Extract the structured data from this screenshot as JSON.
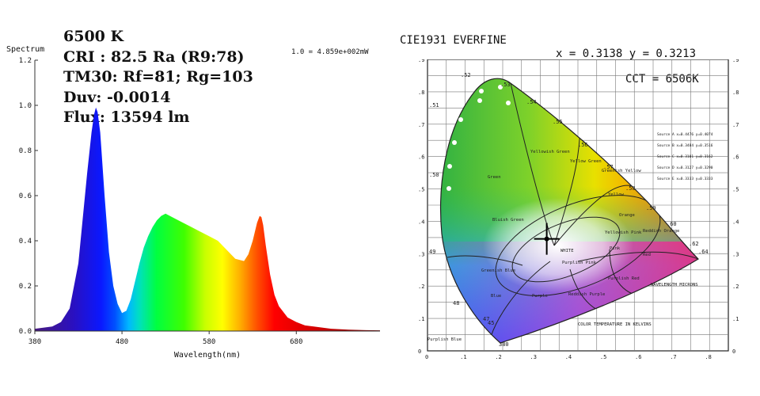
{
  "stats": {
    "cct": "6500 K",
    "cri": "CRI : 82.5 Ra (R9:78)",
    "tm30": "TM30: Rf=81; Rg=103",
    "duv": "Duv: -0.0014",
    "flux": "Flux: 13594 lm"
  },
  "chart_data": [
    {
      "type": "area",
      "title": "",
      "ylabel": "Spectrum",
      "xlabel": "Wavelength(nm)",
      "scale_note": "1.0 = 4.859e+002mW",
      "xlim": [
        380,
        780
      ],
      "ylim": [
        0,
        1.2
      ],
      "xticks": [
        "380",
        "480",
        "580",
        "680"
      ],
      "yticks": [
        "0.0",
        "0.2",
        "0.4",
        "0.6",
        "0.8",
        "1.0",
        "1.2"
      ],
      "series": [
        {
          "x": [
            380,
            400,
            410,
            420,
            430,
            440,
            445,
            448,
            450,
            452,
            455,
            460,
            465,
            470,
            475,
            480,
            485,
            490,
            495,
            500,
            505,
            510,
            515,
            520,
            525,
            530,
            535,
            540,
            550,
            560,
            570,
            580,
            590,
            600,
            610,
            620,
            625,
            630,
            635,
            638,
            640,
            642,
            645,
            650,
            655,
            660,
            670,
            680,
            690,
            700,
            720,
            740,
            760,
            780
          ],
          "y": [
            0.01,
            0.02,
            0.04,
            0.1,
            0.3,
            0.7,
            0.88,
            0.96,
            0.99,
            0.97,
            0.88,
            0.6,
            0.35,
            0.2,
            0.12,
            0.08,
            0.09,
            0.14,
            0.22,
            0.3,
            0.37,
            0.42,
            0.46,
            0.49,
            0.51,
            0.52,
            0.51,
            0.5,
            0.48,
            0.46,
            0.44,
            0.42,
            0.4,
            0.36,
            0.32,
            0.31,
            0.34,
            0.4,
            0.48,
            0.51,
            0.505,
            0.47,
            0.38,
            0.25,
            0.16,
            0.11,
            0.06,
            0.04,
            0.025,
            0.02,
            0.01,
            0.006,
            0.004,
            0.003
          ]
        }
      ]
    },
    {
      "type": "scatter",
      "title": "CIE1931   EVERFINE",
      "readout": "x = 0.3138 y = 0.3213",
      "cct_label": "CCT = 6506K",
      "xlim": [
        0,
        0.8
      ],
      "ylim": [
        0,
        0.9
      ],
      "axis_labels": [
        "0",
        ".1",
        ".2",
        ".3",
        ".4",
        ".5",
        ".6",
        ".7",
        ".8",
        ".9"
      ],
      "locus_labels": [
        "380",
        "45",
        "47",
        "48",
        "49",
        ".50",
        ".51",
        ".52",
        ".53",
        ".54",
        ".55",
        ".56",
        ".57",
        ".58",
        ".59",
        ".60",
        ".62",
        ".64"
      ],
      "region_names": [
        "Green",
        "Yellowish Green",
        "Yellow Green",
        "Greenish Yellow",
        "Yellow",
        "Orange",
        "Reddish Orange",
        "Red",
        "Bluish Green",
        "Greenish Blue",
        "Blue",
        "Purplish Blue",
        "Purple",
        "Reddish Purple",
        "Purplish Red",
        "Purplish Pink",
        "Pink",
        "Yellowish Pink",
        "WHITE"
      ],
      "annotations": [
        "COLOR TEMPERATURE IN KELVINS",
        "WAVELENGTH MICRONS"
      ],
      "sources": [
        "Source A x=0.4476 y=0.4074",
        "Source B x=0.3484 y=0.3516",
        "Source C x=0.3101 y=0.3162",
        "Source D x=0.3127 y=0.3290",
        "Source E x=0.3333 y=0.3333"
      ],
      "point": {
        "x": 0.3138,
        "y": 0.3213
      }
    }
  ]
}
